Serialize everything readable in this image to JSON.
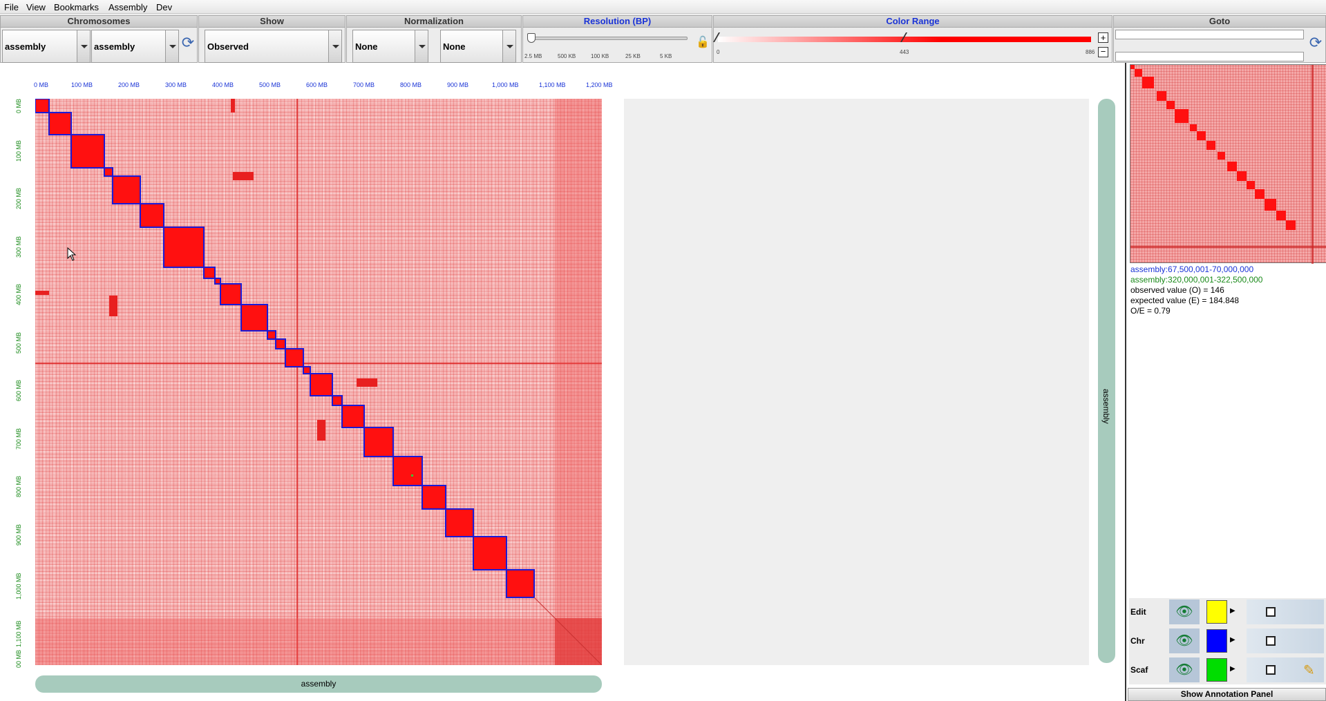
{
  "menu": [
    "File",
    "View",
    "Bookmarks",
    "Assembly",
    "Dev"
  ],
  "panels": {
    "chromosomes": {
      "title": "Chromosomes",
      "chr1": "assembly",
      "chr2": "assembly"
    },
    "show": {
      "title": "Show",
      "value": "Observed"
    },
    "normalization": {
      "title": "Normalization",
      "value1": "None",
      "value2": "None"
    },
    "resolution": {
      "title": "Resolution (BP)",
      "ticks": [
        "2.5 MB",
        "500 KB",
        "100 KB",
        "25 KB",
        "5 KB"
      ]
    },
    "color_range": {
      "title": "Color Range",
      "min": "0",
      "mid": "443",
      "max": "886",
      "plus": "+",
      "minus": "−"
    },
    "goto": {
      "title": "Goto"
    }
  },
  "axis": {
    "top_ticks": [
      "0 MB",
      "100 MB",
      "200 MB",
      "300 MB",
      "400 MB",
      "500 MB",
      "600 MB",
      "700 MB",
      "800 MB",
      "900 MB",
      "1,000 MB",
      "1,100 MB",
      "1,200 MB"
    ],
    "left_ticks": [
      "0 MB",
      "100 MB",
      "200 MB",
      "300 MB",
      "400 MB",
      "500 MB",
      "600 MB",
      "700 MB",
      "800 MB",
      "900 MB",
      "1,000 MB",
      "1,100 MB",
      "00 MB"
    ]
  },
  "tracks": {
    "bottom": "assembly",
    "right": "assembly"
  },
  "info": {
    "line1": "assembly:67,500,001-70,000,000",
    "line2": "assembly:320,000,001-322,500,000",
    "line3": "observed value (O) = 146",
    "line4": "expected value (E) = 184.848",
    "line5": "O/E = 0.79"
  },
  "layers": [
    {
      "name": "Edit",
      "color": "#ffff00"
    },
    {
      "name": "Chr",
      "color": "#0000ff"
    },
    {
      "name": "Scaf",
      "color": "#00dd00"
    }
  ],
  "annotation_button": "Show Annotation Panel",
  "colors": {
    "heat": "#ff0000",
    "chr_outline": "#1a1ad6",
    "axis_blue": "#1a33d6",
    "axis_green": "#1a8a1a"
  }
}
